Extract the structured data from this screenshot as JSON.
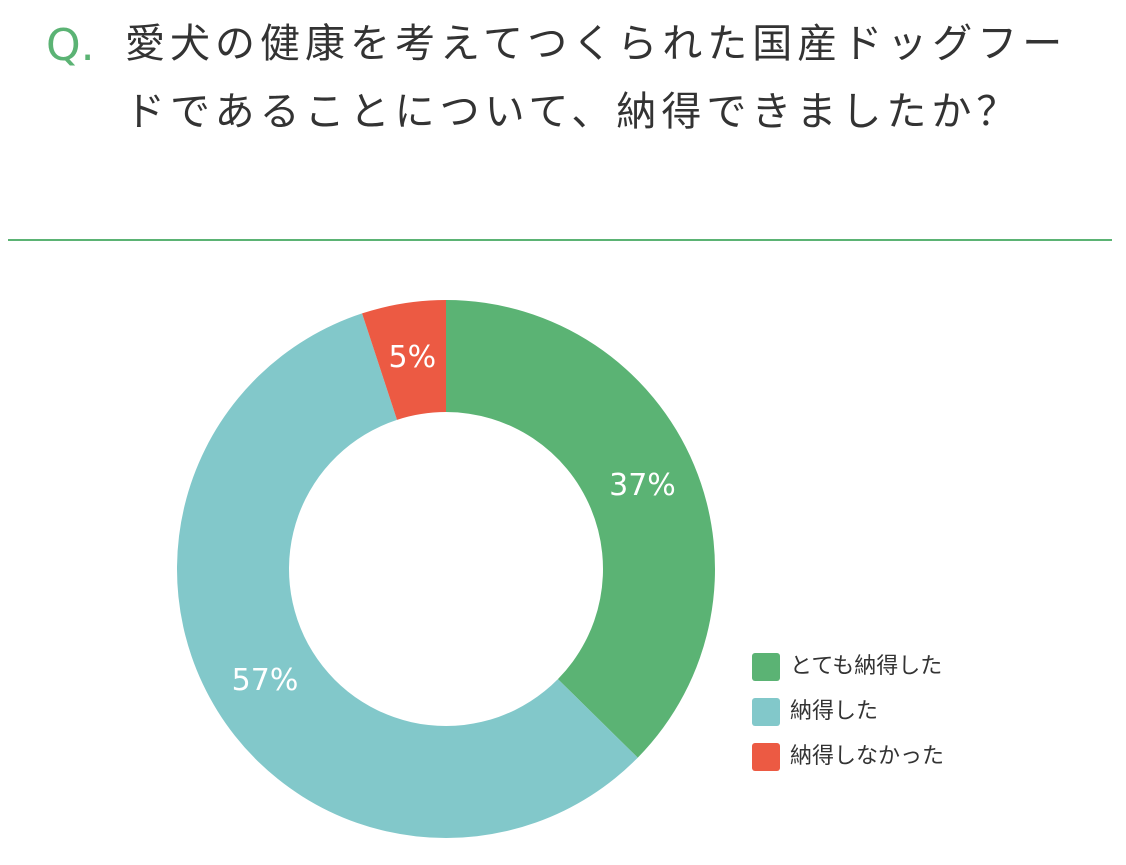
{
  "chart_data": {
    "type": "donut",
    "question_label": "Q.",
    "title": "愛犬の健康を考えてつくられた国産ドッグフードであることについて、納得できましたか？",
    "categories": [
      "とても納得した",
      "納得した",
      "納得しなかった"
    ],
    "values": [
      37,
      57,
      5
    ],
    "value_labels": [
      "37%",
      "57%",
      "5%"
    ],
    "colors": [
      "#5bb374",
      "#82c8ca",
      "#ec5a43"
    ]
  }
}
